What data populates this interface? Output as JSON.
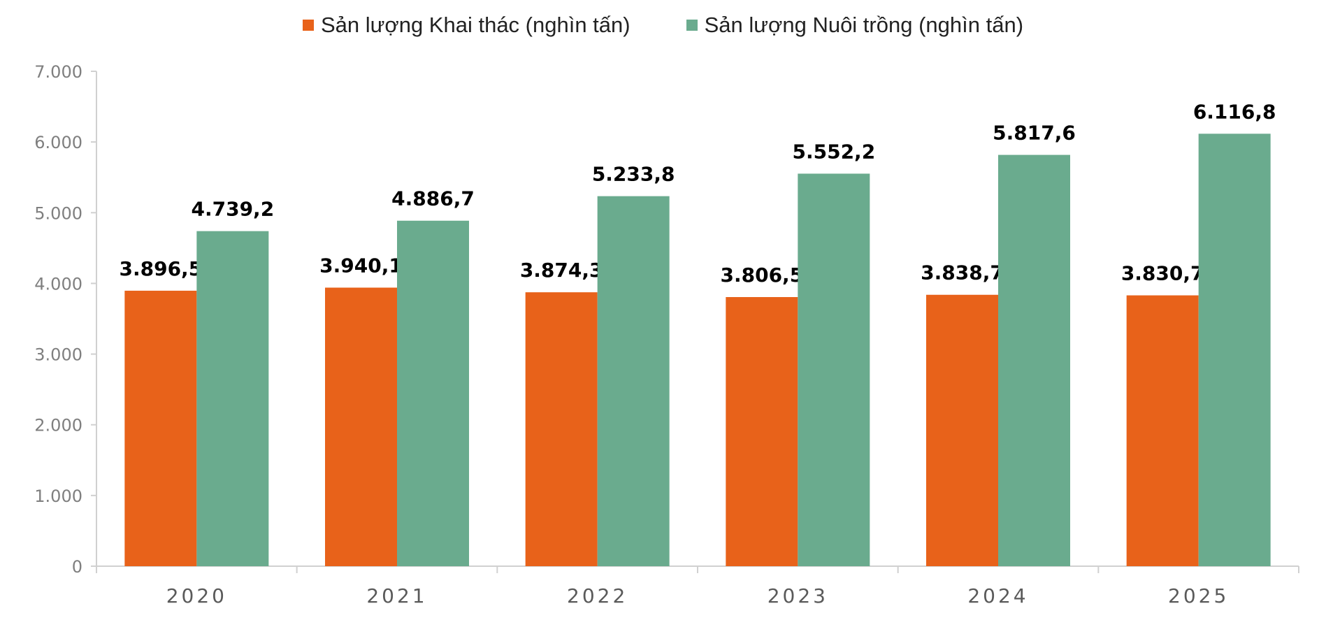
{
  "chart_data": {
    "type": "bar",
    "categories": [
      "2020",
      "2021",
      "2022",
      "2023",
      "2024",
      "2025"
    ],
    "series": [
      {
        "name": "Sản lượng Khai thác (nghìn tấn)",
        "color": "#E8621A",
        "values": [
          3896.5,
          3940.1,
          3874.3,
          3806.5,
          3838.7,
          3830.7
        ],
        "labels": [
          "3.896,5",
          "3.940,1",
          "3.874,3",
          "3.806,5",
          "3.838,7",
          "3.830,7"
        ]
      },
      {
        "name": "Sản lượng Nuôi trồng (nghìn tấn)",
        "color": "#6AAB8E",
        "values": [
          4739.2,
          4886.7,
          5233.8,
          5552.2,
          5817.6,
          6116.8
        ],
        "labels": [
          "4.739,2",
          "4.886,7",
          "5.233,8",
          "5.552,2",
          "5.817,6",
          "6.116,8"
        ]
      }
    ],
    "ylim": [
      0,
      7000
    ],
    "yticks": [
      0,
      1000,
      2000,
      3000,
      4000,
      5000,
      6000,
      7000
    ],
    "ytick_labels": [
      "0",
      "1.000",
      "2.000",
      "3.000",
      "4.000",
      "5.000",
      "6.000",
      "7.000"
    ],
    "title": "",
    "xlabel": "",
    "ylabel": "",
    "legend_position": "top-center",
    "grid": false
  }
}
